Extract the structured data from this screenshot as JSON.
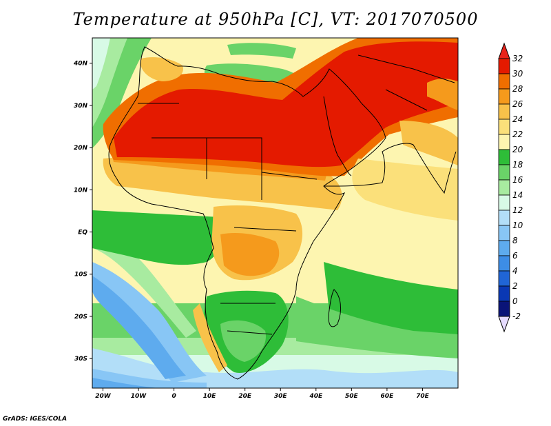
{
  "title": "Temperature at 950hPa [C], VT: 2017070500",
  "footer": "GrADS: IGES/COLA",
  "map": {
    "region": "Africa, Arabian Peninsula, Middle East and India",
    "variable": "Temperature at 950hPa",
    "units": "C",
    "valid_time": "2017070500",
    "lon_range": [
      -23,
      80
    ],
    "lat_range": [
      -37,
      46
    ],
    "lat_ticks": [
      "40N",
      "30N",
      "20N",
      "10N",
      "EQ",
      "10S",
      "20S",
      "30S"
    ],
    "lat_values": [
      40,
      30,
      20,
      10,
      0,
      -10,
      -20,
      -30
    ],
    "lon_ticks": [
      "20W",
      "10W",
      "0",
      "10E",
      "20E",
      "30E",
      "40E",
      "50E",
      "60E",
      "70E"
    ],
    "lon_values": [
      -20,
      -10,
      0,
      10,
      20,
      30,
      40,
      50,
      60,
      70
    ]
  },
  "colorbar": {
    "labels": [
      "32",
      "30",
      "28",
      "26",
      "24",
      "22",
      "20",
      "18",
      "16",
      "14",
      "12",
      "10",
      "8",
      "6",
      "4",
      "2",
      "0",
      "-2"
    ],
    "colors": [
      "#fa3c3c",
      "#e41a00",
      "#f06e00",
      "#f59a1c",
      "#f8c24a",
      "#fbe07a",
      "#fdf5b0",
      "#2ebd38",
      "#6ad368",
      "#a8eba0",
      "#d8fae6",
      "#b2def8",
      "#88c6f5",
      "#5eabee",
      "#3d8de6",
      "#2065d6",
      "#0a38b4",
      "#0a1478"
    ],
    "top_color": "#e8231a",
    "bottom_color": "#e6dcff"
  }
}
